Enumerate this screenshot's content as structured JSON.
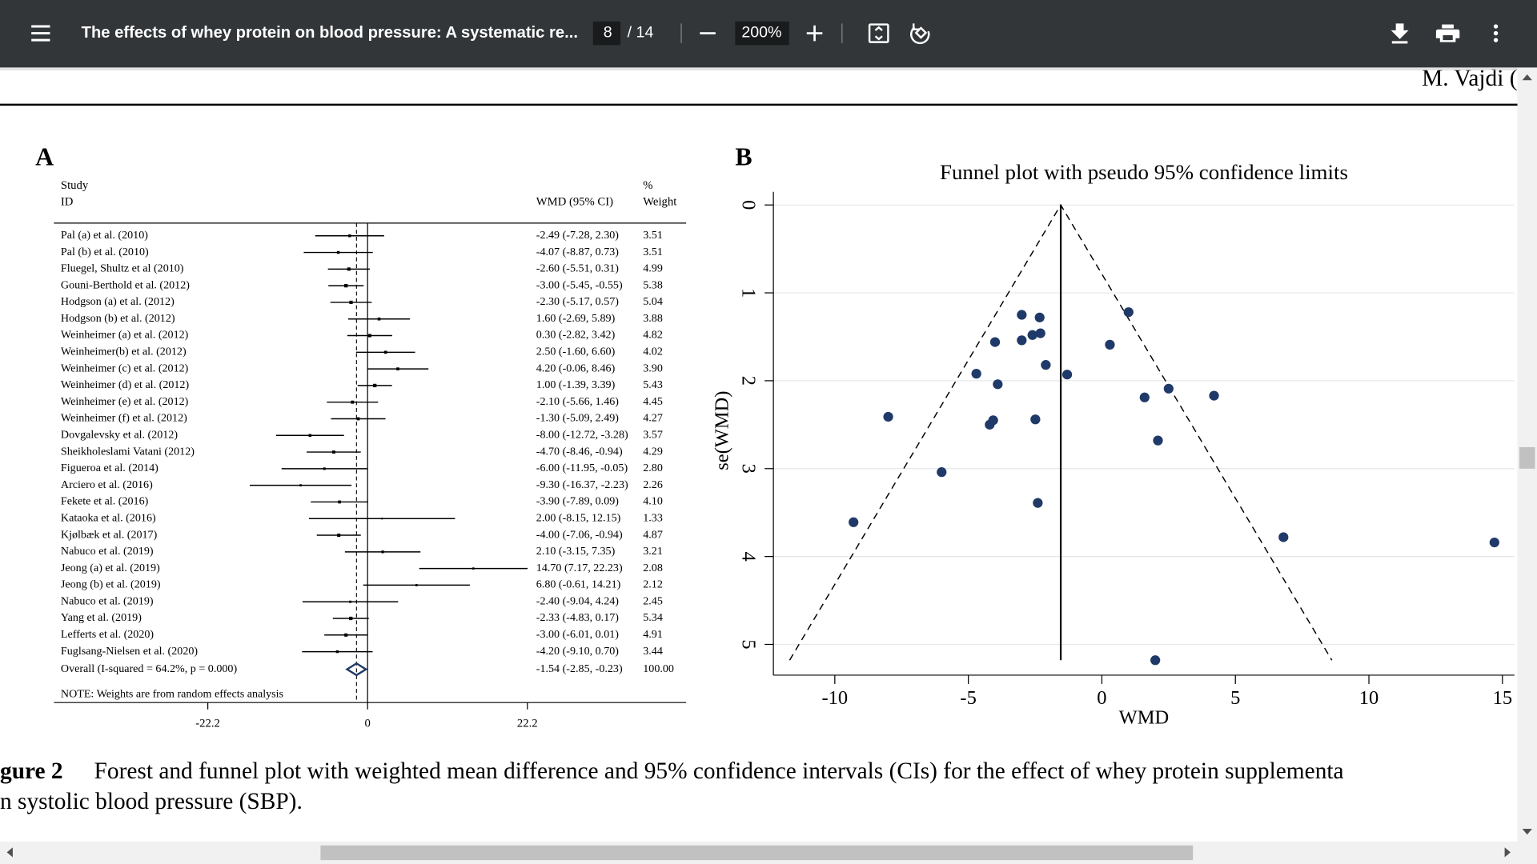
{
  "toolbar": {
    "title": "The effects of whey protein on blood pressure: A systematic re...",
    "page_current": "8",
    "page_total": "/ 14",
    "zoom": "200%"
  },
  "document": {
    "header_author": "M. Vajdi (",
    "caption_label": "gure 2",
    "caption_line1": "Forest and funnel plot with weighted mean difference and 95% confidence intervals (CIs) for the effect of whey protein supplementa",
    "caption_line2": "n systolic blood pressure (SBP)."
  },
  "chart_data": [
    {
      "type": "forest",
      "panel": "A",
      "header_study": "Study",
      "header_id": "ID",
      "header_effect": "WMD (95% CI)",
      "header_weight_symbol": "%",
      "header_weight": "Weight",
      "categories": [
        "Pal (a) et al.  (2010)",
        "Pal (b) et al.  (2010)",
        "Fluegel, Shultz et al (2010)",
        "Gouni-Berthold et al. (2012)",
        "Hodgson (a) et al. (2012)",
        "Hodgson (b) et al.  (2012)",
        "Weinheimer (a) et al. (2012)",
        "Weinheimer(b) et al. (2012)",
        "Weinheimer (c) et al. (2012)",
        "Weinheimer (d) et al. (2012)",
        "Weinheimer (e) et al. (2012)",
        "Weinheimer (f) et al. (2012)",
        "Dovgalevsky et al. (2012)",
        "Sheikholeslami Vatani (2012)",
        "Figueroa et al. (2014)",
        "Arciero et al. (2016)",
        "Fekete et al. (2016)",
        "Kataoka et al. (2016)",
        "Kjølbæk et al. (2017)",
        "Nabuco et al. (2019)",
        "Jeong (a) et al. (2019)",
        "Jeong (b) et al. (2019)",
        "Nabuco et al. (2019)",
        "Yang et al. (2019)",
        "Lefferts et al. (2020)",
        "Fuglsang-Nielsen et al. (2020)"
      ],
      "values": [
        -2.49,
        -4.07,
        -2.6,
        -3,
        -2.3,
        1.6,
        0.3,
        2.5,
        4.2,
        1,
        -2.1,
        -1.3,
        -8,
        -4.7,
        -6,
        -9.3,
        -3.9,
        2,
        -4,
        2.1,
        14.7,
        6.8,
        -2.4,
        -2.33,
        -3,
        -4.2
      ],
      "lower": [
        -7.28,
        -8.87,
        -5.51,
        -5.45,
        -5.17,
        -2.69,
        -2.82,
        -1.6,
        -0.06,
        -1.39,
        -5.66,
        -5.09,
        -12.72,
        -8.46,
        -11.95,
        -16.37,
        -7.89,
        -8.15,
        -7.06,
        -3.15,
        7.17,
        -0.61,
        -9.04,
        -4.83,
        -6.01,
        -9.1
      ],
      "upper": [
        2.3,
        0.73,
        0.31,
        -0.55,
        0.57,
        5.89,
        3.42,
        6.6,
        8.46,
        3.39,
        1.46,
        2.49,
        -3.28,
        -0.94,
        -0.05,
        -2.23,
        0.09,
        12.15,
        -0.94,
        7.35,
        22.23,
        14.21,
        4.24,
        0.17,
        0.01,
        0.7
      ],
      "value_labels": [
        "-2.49 (-7.28, 2.30)",
        "-4.07 (-8.87, 0.73)",
        "-2.60 (-5.51, 0.31)",
        "-3.00 (-5.45, -0.55)",
        "-2.30 (-5.17, 0.57)",
        "1.60 (-2.69, 5.89)",
        "0.30 (-2.82, 3.42)",
        "2.50 (-1.60, 6.60)",
        "4.20 (-0.06, 8.46)",
        "1.00 (-1.39, 3.39)",
        "-2.10 (-5.66, 1.46)",
        "-1.30 (-5.09, 2.49)",
        "-8.00 (-12.72, -3.28)",
        "-4.70 (-8.46, -0.94)",
        "-6.00 (-11.95, -0.05)",
        "-9.30 (-16.37, -2.23)",
        "-3.90 (-7.89, 0.09)",
        "2.00 (-8.15, 12.15)",
        "-4.00 (-7.06, -0.94)",
        "2.10 (-3.15, 7.35)",
        "14.70 (7.17, 22.23)",
        "6.80 (-0.61, 14.21)",
        "-2.40 (-9.04, 4.24)",
        "-2.33 (-4.83, 0.17)",
        "-3.00 (-6.01, 0.01)",
        "-4.20 (-9.10, 0.70)"
      ],
      "weights": [
        3.51,
        3.51,
        4.99,
        5.38,
        5.04,
        3.88,
        4.82,
        4.02,
        3.9,
        5.43,
        4.45,
        4.27,
        3.57,
        4.29,
        2.8,
        2.26,
        4.1,
        1.33,
        4.87,
        3.21,
        2.08,
        2.12,
        2.45,
        5.34,
        4.91,
        3.44
      ],
      "weight_labels": [
        "3.51",
        "3.51",
        "4.99",
        "5.38",
        "5.04",
        "3.88",
        "4.82",
        "4.02",
        "3.90",
        "5.43",
        "4.45",
        "4.27",
        "3.57",
        "4.29",
        "2.80",
        "2.26",
        "4.10",
        "1.33",
        "4.87",
        "3.21",
        "2.08",
        "2.12",
        "2.45",
        "5.34",
        "4.91",
        "3.44"
      ],
      "overall": {
        "label": "Overall  (I-squared = 64.2%, p = 0.000)",
        "value": -1.54,
        "lower": -2.85,
        "upper": -0.23,
        "value_label": "-1.54 (-2.85, -0.23)",
        "weight": 100,
        "weight_label": "100.00"
      },
      "note": "NOTE: Weights are from random effects analysis",
      "xlim": [
        -22.2,
        22.2
      ],
      "xticks": [
        -22.2,
        0,
        22.2
      ],
      "color": "#000000",
      "overall_color": "#1f3a68"
    },
    {
      "type": "funnel",
      "panel": "B",
      "title": "Funnel plot with pseudo 95% confidence limits",
      "x_label": "WMD",
      "y_label": "se(WMD)",
      "x": [
        -2.49,
        -4.07,
        -2.6,
        -3,
        -2.3,
        1.6,
        0.3,
        2.5,
        4.2,
        1,
        -2.1,
        -1.3,
        -8,
        -4.7,
        -6,
        -9.3,
        -3.9,
        2,
        -4,
        2.1,
        14.7,
        6.8,
        -2.4,
        -2.33,
        -3,
        -4.2
      ],
      "values": [
        2.44,
        2.45,
        1.48,
        1.25,
        1.46,
        2.19,
        1.59,
        2.09,
        2.17,
        1.22,
        1.82,
        1.93,
        2.41,
        1.92,
        3.04,
        3.61,
        2.04,
        5.18,
        1.56,
        2.68,
        3.84,
        3.78,
        3.39,
        1.28,
        1.54,
        2.5
      ],
      "pooled": -1.54,
      "xlim": [
        -12.3,
        15.45
      ],
      "ylim": [
        -0.15,
        5.35
      ],
      "y_reversed": true,
      "xticks": [
        -10,
        -5,
        0,
        5,
        10,
        15
      ],
      "yticks": [
        0,
        1,
        2,
        3,
        4,
        5
      ],
      "grid": true,
      "color": "#1f3a68"
    }
  ]
}
